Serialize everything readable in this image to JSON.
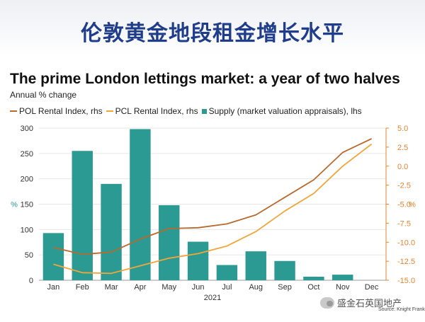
{
  "banner": {
    "title": "伦敦黄金地段租金增长水平"
  },
  "watermark": {
    "text": "盛金石英国地产"
  },
  "source": "Source: Knight Frank",
  "colors": {
    "supply": "#2a9a92",
    "pol": "#b86a2e",
    "pcl": "#f2a53a",
    "right_axis": "#e8822e",
    "grid": "#e6e6e6",
    "banner_text": "#1f3d8a"
  },
  "chart_data": {
    "type": "bar",
    "title": "The prime London lettings market: a year of two halves",
    "subtitle": "Annual % change",
    "categories": [
      "Jan",
      "Feb",
      "Mar",
      "Apr",
      "May",
      "Jun",
      "Jul",
      "Aug",
      "Sep",
      "Oct",
      "Nov",
      "Dec"
    ],
    "xlabel": "2021",
    "ylabel_left": "%",
    "ylabel_right": "%",
    "ylim_left": [
      0,
      300
    ],
    "ylim_right": [
      -15,
      5
    ],
    "yticks_left": [
      "0",
      "50",
      "100",
      "150",
      "200",
      "250",
      "300"
    ],
    "yticks_right": [
      "-15.0",
      "-12.5",
      "-10.0",
      "-7.5",
      "-5.0",
      "-2.5",
      "0.0",
      "2.5",
      "5.0"
    ],
    "legend": [
      {
        "label": "POL Rental Index, rhs",
        "kind": "line",
        "color": "#b86a2e"
      },
      {
        "label": "PCL Rental Index, rhs",
        "kind": "line",
        "color": "#f2a53a"
      },
      {
        "label": "Supply (market valuation appraisals), lhs",
        "kind": "box",
        "color": "#2a9a92"
      }
    ],
    "series": [
      {
        "name": "Supply (market valuation appraisals), lhs",
        "axis": "left",
        "type": "bar",
        "values": [
          93,
          255,
          190,
          298,
          148,
          76,
          30,
          57,
          38,
          7,
          11,
          null
        ]
      },
      {
        "name": "POL Rental Index, rhs",
        "axis": "right",
        "type": "line",
        "values": [
          -10.7,
          -11.6,
          -11.3,
          -9.6,
          -8.2,
          -8.1,
          -7.6,
          -6.4,
          -4.1,
          -1.8,
          1.8,
          3.6
        ]
      },
      {
        "name": "PCL Rental Index, rhs",
        "axis": "right",
        "type": "line",
        "values": [
          -12.9,
          -14.0,
          -14.1,
          -13.1,
          -12.1,
          -11.5,
          -10.5,
          -8.6,
          -5.9,
          -3.6,
          0.0,
          2.9
        ]
      }
    ],
    "grid": true,
    "legend_position": "top-left"
  }
}
